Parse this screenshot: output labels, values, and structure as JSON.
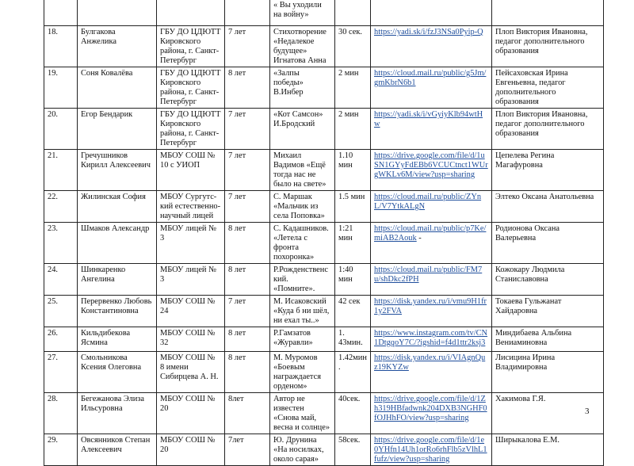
{
  "continued_row": {
    "work": "« Вы уходили на войну»"
  },
  "rows": [
    {
      "num": "18.",
      "name": "Булгакова Анжелика",
      "org": "ГБУ ДО ЦДЮТТ Кировского района, г. Санкт-Петербург",
      "age": "7 лет",
      "work": "Стихотворение «Недалекое будущее» Игнатова Анна",
      "duration": "30 сек.",
      "link": "https://yadi.sk/i/fzJ3NSa0Pyip-Q",
      "link_suffix": "",
      "teacher": "Плоп Виктория Ивановна, педагог дополнительного образования"
    },
    {
      "num": "19.",
      "name": "Соня Ковалёва",
      "org": "ГБУ ДО ЦДЮТТ Кировского района, г. Санкт-Петербург",
      "age": "8 лет",
      "work": "«Залпы победы» В.Инбер",
      "duration": "2 мин",
      "link": "https://cloud.mail.ru/public/g5Jm/gmKbrN6b1",
      "link_suffix": "",
      "teacher": "Пейсаховская Ирина Евгеньевна, педагог дополнительного образования"
    },
    {
      "num": "20.",
      "name": "Егор Бендарик",
      "org": "ГБУ ДО ЦДЮТТ Кировского района, г. Санкт-Петербург",
      "age": "7 лет",
      "work": "«Кот Самсон» И.Бродский",
      "duration": "2 мин",
      "link": "https://yadi.sk/i/vGyiyKlb94wtHw",
      "link_suffix": "",
      "teacher": "Плоп Виктория Ивановна, педагог дополнительного образования"
    },
    {
      "num": "21.",
      "name": "Гречушников Кирилл Алексеевич",
      "org": "МБОУ СОШ № 10 с УИОП",
      "age": "7 лет",
      "work": "Михаил Вадимов «Ещё тогда нас не было на свете»",
      "duration": "1.10 мин",
      "link": "https://drive.google.com/file/d/1uSN1GYyFdEBb6VCUCtnct1WUrgWKLv6M/view?usp=sharing",
      "link_suffix": "",
      "teacher": "Цепелева Регина Магафуровна"
    },
    {
      "num": "22.",
      "name": "Жилинская София",
      "org": "МБОУ Сургутс-кий естественно-научный лицей",
      "age": "7 лет",
      "work": "С. Маршак «Мальчик из села Поповка»",
      "duration": "1.5 мин",
      "link": "https://cloud.mail.ru/public/ZYnL/V7YtkALgN",
      "link_suffix": "",
      "teacher": "Элтеко Оксана Анатольевна"
    },
    {
      "num": "23.",
      "name": "Шмаков Александр",
      "org": "МБОУ лицей № 3",
      "age": "8 лет",
      "work": "С. Кадашников. «Летела с фронта похоронка»",
      "duration": "1:21 мин",
      "link": "https://cloud.mail.ru/public/p7Ke/miAB2Aouk",
      "link_suffix": " -",
      "teacher": "Родионова Оксана Валерьевна"
    },
    {
      "num": "24.",
      "name": "Шинкаренко Ангелина",
      "org": "МБОУ лицей № 3",
      "age": "8 лет",
      "work": "Р.Рожденственский. «Помните».",
      "duration": "1:40 мин",
      "link": "https://cloud.mail.ru/public/FM7u/shDkc2fPH",
      "link_suffix": "",
      "teacher": "Кожокару Людмила Станиславовна"
    },
    {
      "num": "25.",
      "name": "Перервенко Любовь Константиновна",
      "org": "МБОУ СОШ № 24",
      "age": "7 лет",
      "work": "М. Исаковский «Куда б ни шёл, ни ехал ты..»",
      "duration": "42 сек",
      "link": "https://disk.yandex.ru/i/vmu9H1fr1y2FVA",
      "link_suffix": "",
      "teacher": "Токаева Гульжанат Хайдаровна"
    },
    {
      "num": "26.",
      "name": "Кильдибекова Ясмина",
      "org": "МБОУ СОШ № 32",
      "age": "8 лет",
      "work": "Р.Гамзатов «Журавли»",
      "duration": "1. 43мин.",
      "link": "https://www.instagram.com/tv/CN1DtgqoY7C/?igshid=f4d1ttr2ksj3",
      "link_suffix": "",
      "teacher": "Миндибаева Альбина Вениаминовна"
    },
    {
      "num": "27.",
      "name": "Смольникова Ксения Олеговна",
      "org": "МБОУ СОШ № 8 имени Сибирцева А. Н.",
      "age": "8 лет",
      "work": "М. Муромов «Боевым награждается орденом»",
      "duration": "1.42мин.",
      "link": "https://disk.yandex.ru/i/VIAgnQuz19KYZw",
      "link_suffix": "",
      "teacher": "Лисицина Ирина Владимировна"
    },
    {
      "num": "28.",
      "name": "Бегежанова Элиза Ильсуровна",
      "org": "МБОУ СОШ № 20",
      "age": "8лет",
      "work": "Автор не известен «Снова май, весна и солнце»",
      "duration": "40сек.",
      "link": "https://drive.google.com/file/d/1Zh319HBfadwnk204DXB3NGHF0fOJHhFO/view?usp=sharing",
      "link_suffix": "",
      "teacher": "Хакимова Г.Я."
    },
    {
      "num": "29.",
      "name": "Овсянников Степан Алексеевич",
      "org": "МБОУ СОШ № 20",
      "age": "7лет",
      "work": "Ю. Друнина «На носилках, около сарая»",
      "duration": "58сек.",
      "link": "https://drive.google.com/file/d/1e0YHfn14Uh1orRo6rhFlb5zVlhL1fufz/view?usp=sharing",
      "link_suffix": "",
      "teacher": "Ширыкалова Е.М."
    }
  ],
  "page_number": "3"
}
